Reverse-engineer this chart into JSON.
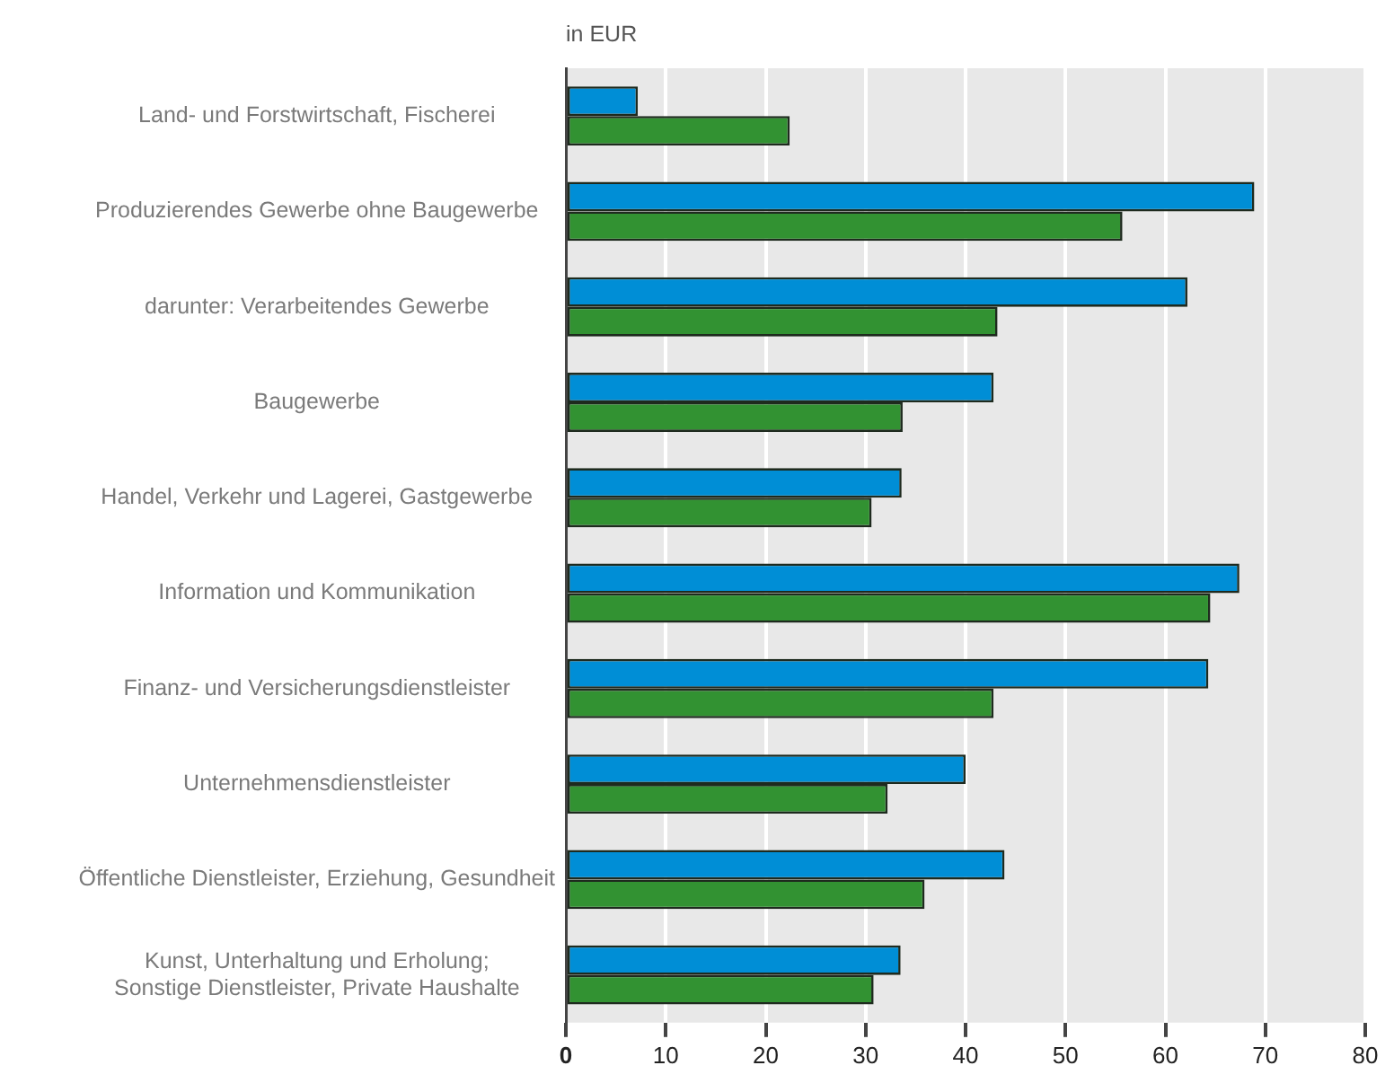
{
  "chart_data": {
    "type": "bar",
    "orientation": "horizontal",
    "title": "in EUR",
    "categories": [
      "Land- und Forstwirtschaft, Fischerei",
      "Produzierendes Gewerbe ohne Baugewerbe",
      "darunter: Verarbeitendes Gewerbe",
      "Baugewerbe",
      "Handel, Verkehr und Lagerei, Gastgewerbe",
      "Information und Kommunikation",
      "Finanz- und Versicherungsdienstleister",
      "Unternehmensdienstleister",
      "Öffentliche Dienstleister, Erziehung, Gesundheit",
      "Kunst, Unterhaltung und Erholung; Sonstige Dienstleister, Private Haushalte"
    ],
    "series": [
      {
        "color": "#008ed6",
        "values": [
          7.2,
          68.9,
          62.2,
          42.8,
          33.6,
          67.4,
          64.3,
          40.0,
          43.9,
          33.5
        ]
      },
      {
        "color": "#329232",
        "values": [
          22.4,
          55.7,
          43.2,
          33.7,
          30.6,
          64.5,
          42.8,
          32.2,
          35.9,
          30.8
        ]
      }
    ],
    "xlim": [
      0,
      80
    ],
    "xticks": [
      0,
      10,
      20,
      30,
      40,
      50,
      60,
      70,
      80
    ],
    "grid": "x",
    "legend": false
  }
}
